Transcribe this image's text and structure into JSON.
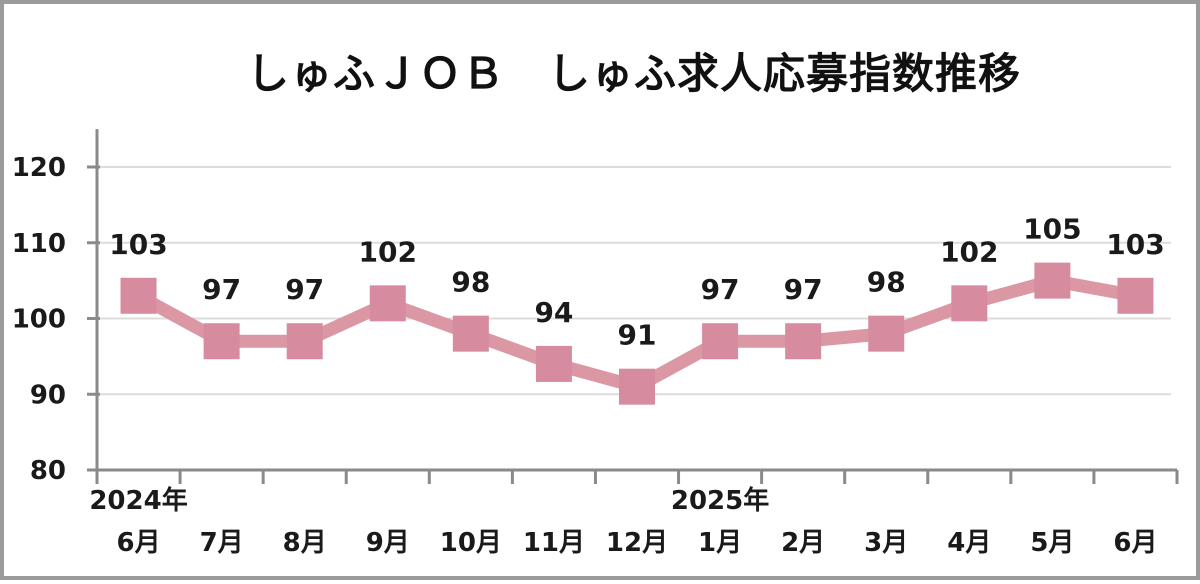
{
  "page": {
    "background_color": "#ffffff",
    "border_color": "#9b9b9b"
  },
  "chart_data": {
    "type": "line",
    "title": "しゅふＪＯＢ　しゅふ求人応募指数推移",
    "categories": [
      "6月",
      "7月",
      "8月",
      "9月",
      "10月",
      "11月",
      "12月",
      "1月",
      "2月",
      "3月",
      "4月",
      "5月",
      "6月"
    ],
    "values": [
      103,
      97,
      97,
      102,
      98,
      94,
      91,
      97,
      97,
      98,
      102,
      105,
      103
    ],
    "year_labels": [
      {
        "text": "2024年",
        "month_index": 0
      },
      {
        "text": "2025年",
        "month_index": 7
      }
    ],
    "y_ticks": [
      80,
      90,
      100,
      110,
      120
    ],
    "ylim": [
      80,
      125
    ],
    "xlabel": "",
    "ylabel": "",
    "grid": "horizontal",
    "legend": "none",
    "marker": "square",
    "data_labels": "above",
    "colors": {
      "line": "#DB97A4",
      "marker": "#D68C9E",
      "axis": "#8a8a8a",
      "gridline": "#dcdcdc",
      "text": "#1a1a1a"
    }
  }
}
